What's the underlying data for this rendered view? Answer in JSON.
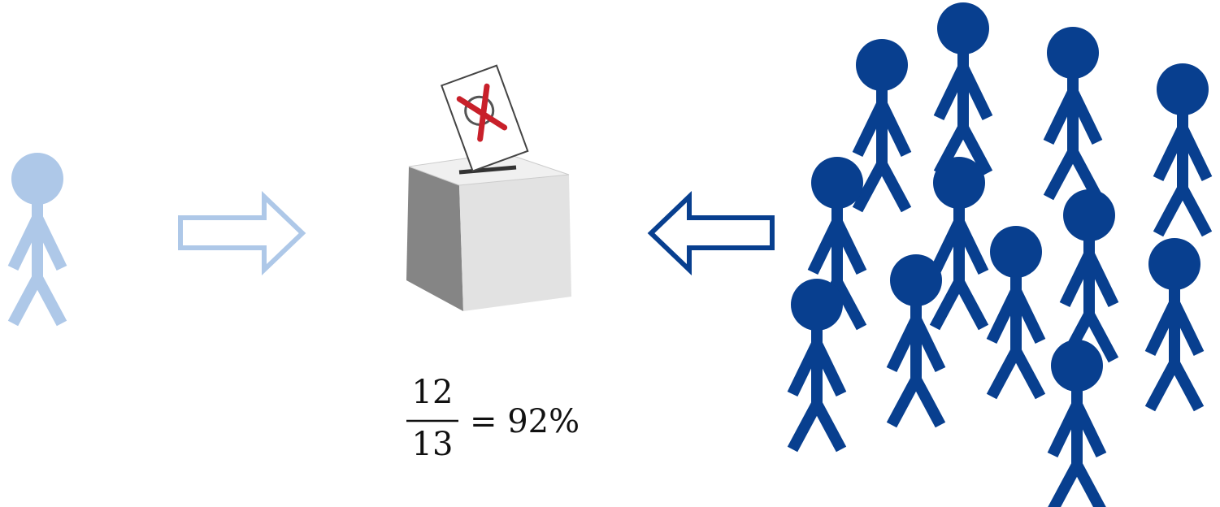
{
  "formula": {
    "numerator": "12",
    "denominator": "13",
    "result": "= 92%"
  }
}
